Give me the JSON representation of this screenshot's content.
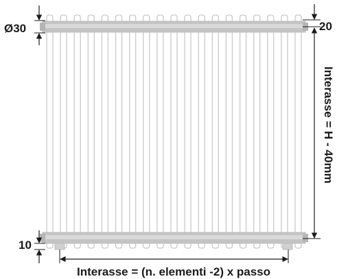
{
  "dimensions": {
    "pipe_diameter": "Ø30",
    "top_offset": "20",
    "bottom_offset": "10",
    "vertical_interaxis": "Interasse = H - 40mm",
    "horizontal_interaxis": "Interasse = (n. elementi -2) x passo"
  },
  "colors": {
    "tube_stroke": "#c9c9c9",
    "tube_fill": "#ffffff",
    "collector_fill": "#c4c4c4",
    "collector_band": "#d6d6d6",
    "dimension_line": "#1a1a1a",
    "text": "#1a1a1a"
  },
  "radiator": {
    "vertical_tube_count": 19
  }
}
